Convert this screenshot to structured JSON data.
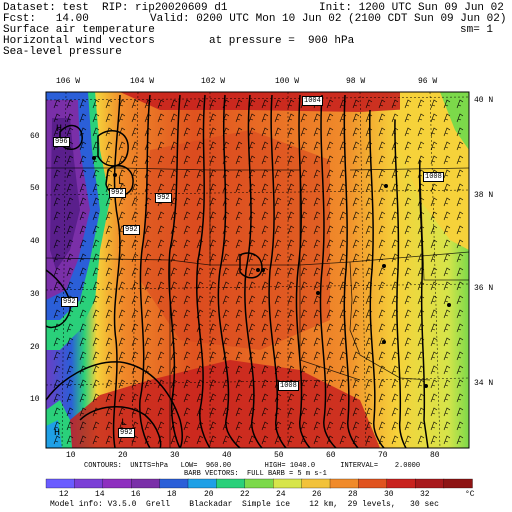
{
  "header": {
    "dataset": "Dataset: test  RIP: rip20020609 d1",
    "init": "Init: 1200 UTC Sun 09 Jun 02",
    "fcst": "Fcst:   14.00",
    "valid": "Valid: 0200 UTC Mon 10 Jun 02 (2100 CDT Sun 09 Jun 02)",
    "fields": [
      "Surface air temperature",
      "Horizontal wind vectors",
      "Sea-level pressure"
    ],
    "sm": "sm= 1",
    "pressure": "at pressure =  900 hPa"
  },
  "map": {
    "lon_labels": [
      "106 W",
      "104 W",
      "102 W",
      "100 W",
      "98 W",
      "96 W"
    ],
    "lat_labels": [
      "40 N",
      "38 N",
      "36 N",
      "34 N"
    ],
    "y_ticks": [
      "60",
      "50",
      "40",
      "30",
      "20",
      "10"
    ],
    "x_ticks": [
      "10",
      "20",
      "30",
      "40",
      "50",
      "60",
      "70",
      "80"
    ],
    "pressure_labels": [
      "1004",
      "1008",
      "1008",
      "992",
      "992",
      "992",
      "996",
      "992",
      "992"
    ],
    "highs": [
      "H",
      "H"
    ],
    "lows": [
      "L",
      "L"
    ]
  },
  "footer": {
    "contours": "CONTOURS:  UNITS=hPa   LOW=  960.00        HIGH= 1040.0      INTERVAL=    2.0000",
    "barbs": "BARB VECTORS:  FULL BARB = 5 m s-1",
    "colorbar": {
      "labels": [
        "12",
        "14",
        "16",
        "18",
        "20",
        "22",
        "24",
        "26",
        "28",
        "30",
        "32",
        "°C"
      ],
      "colors": [
        "#6a5cff",
        "#7b3fd6",
        "#8e2fbf",
        "#7a2fa8",
        "#2b5fd8",
        "#1fa0e6",
        "#2ad07a",
        "#7cd94a",
        "#d7e54a",
        "#f2c23a",
        "#f08a2a",
        "#e0531f",
        "#c8221e",
        "#a8191c",
        "#8e1414"
      ]
    },
    "model_info": "Model info: V3.5.0  Grell    Blackadar  Simple ice    12 km,  29 levels,   30 sec"
  },
  "palette": {
    "purple": "#7a2fa8",
    "blue": "#2b5fd8",
    "cyan": "#1fa0e6",
    "green": "#2ad07a",
    "yellow": "#f6d23a",
    "orange": "#f08a2a",
    "red": "#e0531f",
    "darkred": "#c8221e"
  }
}
